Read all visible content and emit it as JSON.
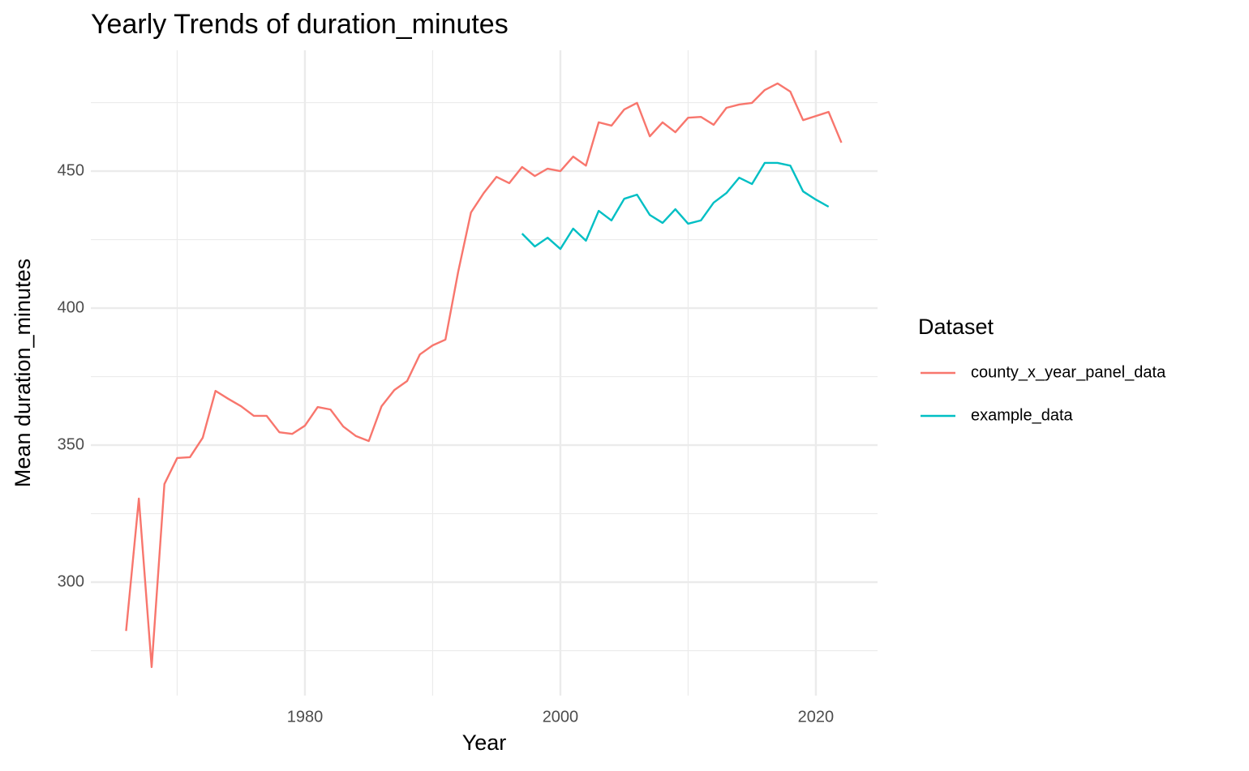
{
  "chart_data": {
    "type": "line",
    "title": "Yearly Trends of duration_minutes",
    "x_label": "Year",
    "y_label": "Mean duration_minutes",
    "legend_title": "Dataset",
    "legend_position": "right",
    "grid": true,
    "x": [
      1966,
      1967,
      1968,
      1969,
      1970,
      1971,
      1972,
      1973,
      1974,
      1975,
      1976,
      1977,
      1978,
      1979,
      1980,
      1981,
      1982,
      1983,
      1984,
      1985,
      1986,
      1987,
      1988,
      1989,
      1990,
      1991,
      1992,
      1993,
      1994,
      1995,
      1996,
      1997,
      1998,
      1999,
      2000,
      2001,
      2002,
      2003,
      2004,
      2005,
      2006,
      2007,
      2008,
      2009,
      2010,
      2011,
      2012,
      2013,
      2014,
      2015,
      2016,
      2017,
      2018,
      2019,
      2020,
      2021,
      2022
    ],
    "series": [
      {
        "name": "county_x_year_panel_data",
        "color": "#F8766D",
        "values": [
          282.2,
          330.5,
          269,
          335.8,
          345.3,
          345.6,
          352.7,
          369.8,
          366.9,
          364.2,
          360.7,
          360.7,
          354.7,
          354.1,
          357.1,
          363.9,
          363,
          356.8,
          353.3,
          351.5,
          364.2,
          370.1,
          373.4,
          383.1,
          386.4,
          388.5,
          413.3,
          434.9,
          442,
          447.9,
          445.6,
          451.5,
          448.2,
          450.9,
          450,
          455.3,
          452,
          467.8,
          466.6,
          472.5,
          474.9,
          462.7,
          467.8,
          464.2,
          469.5,
          469.8,
          466.9,
          473.1,
          474.3,
          474.9,
          479.6,
          482,
          479,
          468.6,
          470.1,
          471.6,
          460.4
        ]
      },
      {
        "name": "example_data",
        "color": "#00BFC4",
        "values": [
          null,
          null,
          null,
          null,
          null,
          null,
          null,
          null,
          null,
          null,
          null,
          null,
          null,
          null,
          null,
          null,
          null,
          null,
          null,
          null,
          null,
          null,
          null,
          null,
          null,
          null,
          null,
          null,
          null,
          null,
          null,
          427.2,
          422.5,
          425.7,
          421.6,
          429,
          424.6,
          435.5,
          432,
          439.9,
          441.4,
          434,
          431.1,
          436.1,
          430.8,
          432,
          438.5,
          442,
          447.6,
          445.3,
          453,
          453,
          452,
          442.6,
          439.6,
          437,
          null
        ]
      }
    ],
    "xlim": [
      1963.24,
      2024.83
    ],
    "xticks": [
      1980,
      2000,
      2020
    ],
    "xminor": [
      1970,
      1990,
      2010
    ],
    "ylim": [
      258.6,
      494.1
    ],
    "yticks": [
      300,
      350,
      400,
      450
    ],
    "yminor": [
      275,
      325,
      375,
      425,
      475
    ]
  }
}
